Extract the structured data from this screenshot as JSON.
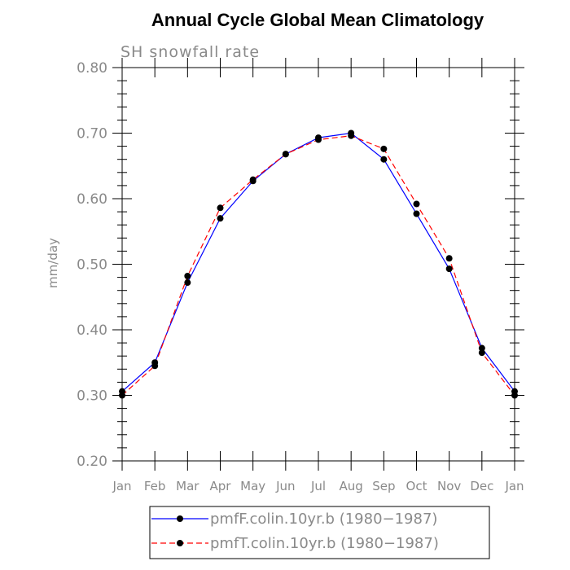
{
  "chart_data": {
    "type": "line",
    "title": "Annual Cycle Global Mean Climatology",
    "subtitle": "SH snowfall rate",
    "ylabel": "mm/day",
    "xlabel": "",
    "categories": [
      "Jan",
      "Feb",
      "Mar",
      "Apr",
      "May",
      "Jun",
      "Jul",
      "Aug",
      "Sep",
      "Oct",
      "Nov",
      "Dec",
      "Jan"
    ],
    "ylim": [
      0.2,
      0.8
    ],
    "yticks": [
      "0.20",
      "0.30",
      "0.40",
      "0.50",
      "0.60",
      "0.70",
      "0.80"
    ],
    "grid": false,
    "legend_position": "bottom",
    "series": [
      {
        "name": "pmfF.colin.10yr.b (1980−1987)",
        "color": "#0000ff",
        "dash": "solid",
        "values": [
          0.306,
          0.35,
          0.472,
          0.57,
          0.627,
          0.668,
          0.693,
          0.7,
          0.66,
          0.577,
          0.493,
          0.372,
          0.306
        ]
      },
      {
        "name": "pmfT.colin.10yr.b (1980−1987)",
        "color": "#ff0000",
        "dash": "dashed",
        "values": [
          0.3,
          0.345,
          0.482,
          0.586,
          0.629,
          0.668,
          0.69,
          0.696,
          0.676,
          0.592,
          0.509,
          0.365,
          0.3
        ]
      }
    ]
  }
}
